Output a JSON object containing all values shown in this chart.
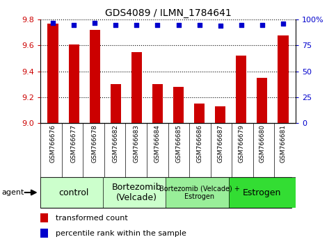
{
  "title": "GDS4089 / ILMN_1784641",
  "samples": [
    "GSM766676",
    "GSM766677",
    "GSM766678",
    "GSM766682",
    "GSM766683",
    "GSM766684",
    "GSM766685",
    "GSM766686",
    "GSM766687",
    "GSM766679",
    "GSM766680",
    "GSM766681"
  ],
  "transformed_counts": [
    9.77,
    9.61,
    9.72,
    9.3,
    9.55,
    9.3,
    9.28,
    9.15,
    9.13,
    9.52,
    9.35,
    9.68
  ],
  "percentile_ranks": [
    97,
    95,
    97,
    95,
    95,
    95,
    95,
    95,
    94,
    95,
    95,
    96
  ],
  "ylim": [
    9.0,
    9.8
  ],
  "yticks": [
    9.0,
    9.2,
    9.4,
    9.6,
    9.8
  ],
  "right_yticks": [
    0,
    25,
    50,
    75,
    100
  ],
  "bar_color": "#cc0000",
  "dot_color": "#0000cc",
  "groups": [
    {
      "label": "control",
      "indices": [
        0,
        1,
        2
      ],
      "color": "#ccffcc",
      "fontsize": 9
    },
    {
      "label": "Bortezomib\n(Velcade)",
      "indices": [
        3,
        4,
        5
      ],
      "color": "#ccffcc",
      "fontsize": 9
    },
    {
      "label": "Bortezomib (Velcade) +\nEstrogen",
      "indices": [
        6,
        7,
        8
      ],
      "color": "#99ee99",
      "fontsize": 7
    },
    {
      "label": "Estrogen",
      "indices": [
        9,
        10,
        11
      ],
      "color": "#33dd33",
      "fontsize": 9
    }
  ],
  "legend_red_label": "transformed count",
  "legend_blue_label": "percentile rank within the sample",
  "agent_label": "agent",
  "tick_area_bg": "#cccccc"
}
